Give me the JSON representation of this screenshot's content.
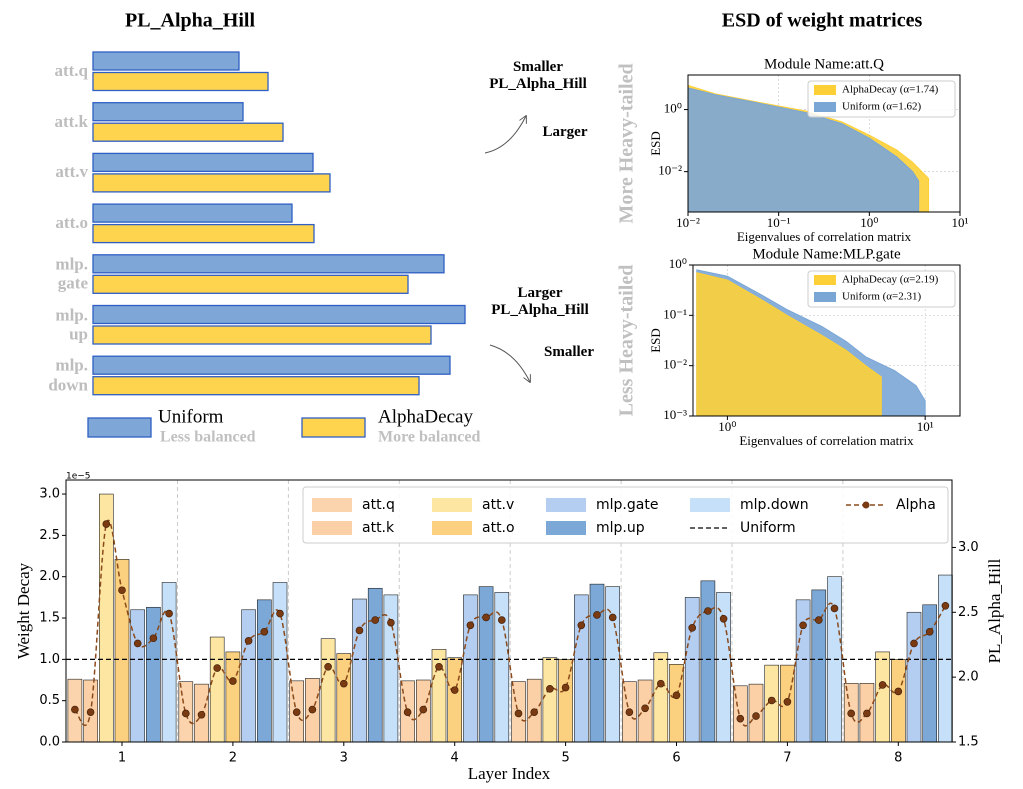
{
  "chart_data": [
    {
      "type": "hbar",
      "title": "PL_Alpha_Hill",
      "categories": [
        "att.q",
        "att.k",
        "att.v",
        "att.o",
        "mlp.\ngate",
        "mlp.\nup",
        "mlp.\ndown"
      ],
      "series": [
        {
          "name": "Uniform",
          "description": "Less balanced",
          "color": "#7ea7d8",
          "values": [
            146,
            150,
            220,
            199,
            351,
            372,
            357
          ]
        },
        {
          "name": "AlphaDecay",
          "description": "More balanced",
          "color": "#fed44f",
          "values": [
            175,
            190,
            237,
            221,
            315,
            338,
            326
          ]
        }
      ],
      "annotations": [
        "Smaller\nPL_Alpha_Hill",
        "Larger",
        "Larger\nPL_Alpha_Hill",
        "Smaller"
      ]
    },
    {
      "type": "esd",
      "title": "ESD of weight matrices",
      "subtitle": "Module Name:att.Q",
      "xlabel": "Eigenvalues of correlation matrix",
      "ylabel": "ESD",
      "annotation": "More Heavy-tailed",
      "log_x": true,
      "log_y": true,
      "grid": true,
      "xlim": [
        0.01,
        10
      ],
      "ylim": [
        0.0005,
        13
      ],
      "xticks": [
        {
          "value": 0.01,
          "label": "10⁻²"
        },
        {
          "value": 0.1,
          "label": "10⁻¹"
        },
        {
          "value": 1,
          "label": "10⁰"
        },
        {
          "value": 10,
          "label": "10¹"
        }
      ],
      "yticks": [
        {
          "value": 0.01,
          "label": "10⁻²"
        },
        {
          "value": 1,
          "label": "10⁰"
        }
      ],
      "series": [
        {
          "name": "AlphaDecay (α=1.74)",
          "color": "#fdd037",
          "x": [
            0.01,
            0.02,
            0.05,
            0.1,
            0.2,
            0.5,
            1,
            2,
            3,
            4.5
          ],
          "values": [
            6,
            3.2,
            1.9,
            1.3,
            0.9,
            0.4,
            0.15,
            0.05,
            0.02,
            0.006
          ]
        },
        {
          "name": "Uniform (α=1.62)",
          "color": "#7aa6d6",
          "x": [
            0.01,
            0.02,
            0.05,
            0.1,
            0.2,
            0.5,
            1,
            2,
            3,
            3.5
          ],
          "values": [
            5,
            3,
            1.8,
            1.2,
            0.8,
            0.35,
            0.12,
            0.03,
            0.01,
            0.005
          ]
        }
      ]
    },
    {
      "type": "esd",
      "subtitle": "Module Name:MLP.gate",
      "xlabel": "Eigenvalues of correlation matrix",
      "ylabel": "ESD",
      "annotation": "Less Heavy-tailed",
      "log_x": true,
      "log_y": true,
      "grid": true,
      "xlim": [
        0.67,
        15
      ],
      "ylim": [
        0.001,
        1
      ],
      "xticks": [
        {
          "value": 1,
          "label": "10⁰"
        },
        {
          "value": 10,
          "label": "10¹"
        }
      ],
      "yticks": [
        {
          "value": 1,
          "label": "10⁰"
        },
        {
          "value": 0.1,
          "label": "10⁻¹"
        },
        {
          "value": 0.01,
          "label": "10⁻²"
        },
        {
          "value": 0.001,
          "label": "10⁻³"
        }
      ],
      "series": [
        {
          "name": "AlphaDecay (α=2.19)",
          "color": "#fdd037",
          "x": [
            0.7,
            1,
            1.5,
            2,
            3,
            4,
            5,
            6
          ],
          "values": [
            0.7,
            0.5,
            0.2,
            0.1,
            0.04,
            0.02,
            0.01,
            0.006
          ]
        },
        {
          "name": "Uniform (α=2.31)",
          "color": "#7aa6d6",
          "x": [
            0.7,
            1,
            1.5,
            2,
            3,
            4,
            5,
            7,
            9,
            10
          ],
          "values": [
            0.8,
            0.6,
            0.25,
            0.13,
            0.06,
            0.03,
            0.015,
            0.008,
            0.004,
            0.002
          ]
        }
      ]
    },
    {
      "type": "bar_line",
      "xlabel": "Layer Index",
      "ylabel": "Weight Decay",
      "y2label": "PL_Alpha_Hill",
      "y_offset_label": "1e−5",
      "categories": [
        "1",
        "2",
        "3",
        "4",
        "5",
        "6",
        "7",
        "8"
      ],
      "ylim": [
        0,
        3.17
      ],
      "yticks": [
        {
          "value": 0,
          "label": "0.0"
        },
        0.5,
        {
          "value": 1,
          "label": "1.0"
        },
        1.5,
        {
          "value": 2,
          "label": "2.0"
        },
        2.5,
        {
          "value": 3,
          "label": "3.0"
        }
      ],
      "y2lim": [
        1.5,
        3.52
      ],
      "y2ticks": [
        1.5,
        {
          "value": 2,
          "label": "2.0"
        },
        2.5,
        {
          "value": 3,
          "label": "3.0"
        }
      ],
      "series": [
        {
          "name": "att.q",
          "color": "#fbd4ae",
          "values": [
            0.76,
            0.73,
            0.74,
            0.74,
            0.73,
            0.73,
            0.68,
            0.71
          ]
        },
        {
          "name": "att.k",
          "color": "#fbd0a6",
          "values": [
            0.75,
            0.7,
            0.77,
            0.75,
            0.76,
            0.75,
            0.7,
            0.71
          ]
        },
        {
          "name": "att.v",
          "color": "#fde6a2",
          "values": [
            3.0,
            1.27,
            1.25,
            1.12,
            1.02,
            1.08,
            0.93,
            1.09
          ]
        },
        {
          "name": "att.o",
          "color": "#fbd07e",
          "values": [
            2.21,
            1.09,
            1.07,
            1.02,
            1.0,
            0.94,
            0.93,
            1.0
          ]
        },
        {
          "name": "mlp.gate",
          "color": "#b4cef2",
          "values": [
            1.6,
            1.6,
            1.73,
            1.78,
            1.78,
            1.75,
            1.72,
            1.57
          ]
        },
        {
          "name": "mlp.up",
          "color": "#7ba8d6",
          "values": [
            1.63,
            1.72,
            1.86,
            1.88,
            1.91,
            1.95,
            1.84,
            1.66
          ]
        },
        {
          "name": "mlp.down",
          "color": "#c5e0f8",
          "values": [
            1.93,
            1.93,
            1.78,
            1.81,
            1.88,
            1.81,
            2.0,
            2.02
          ]
        }
      ],
      "hline": {
        "name": "Uniform",
        "color": "#000000",
        "value": 1
      },
      "line": {
        "name": "Alpha",
        "color": "#8b4a1c",
        "axis": "y2",
        "values": [
          1.75,
          1.73,
          3.18,
          2.67,
          2.26,
          2.3,
          2.49,
          1.72,
          1.71,
          2.07,
          1.97,
          2.28,
          2.35,
          2.49,
          1.73,
          1.75,
          2.08,
          1.95,
          2.36,
          2.44,
          2.42,
          1.73,
          1.75,
          2.08,
          1.9,
          2.4,
          2.46,
          2.44,
          1.72,
          1.73,
          1.91,
          1.92,
          2.4,
          2.48,
          2.46,
          1.73,
          1.76,
          1.95,
          1.86,
          2.38,
          2.51,
          2.45,
          1.68,
          1.7,
          1.82,
          1.81,
          2.4,
          2.44,
          2.53,
          1.72,
          1.72,
          1.94,
          1.89,
          2.26,
          2.35,
          2.55
        ]
      }
    }
  ]
}
